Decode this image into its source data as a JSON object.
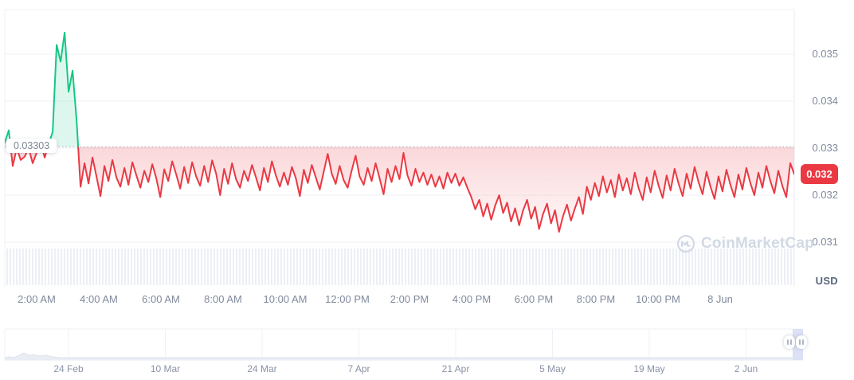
{
  "chart_data": {
    "type": "line",
    "title": "",
    "y_axis_unit": "USD",
    "current_price": "0.032",
    "reference_price": "0.03303",
    "y_ticks": [
      "0.035",
      "0.034",
      "0.033",
      "0.032",
      "0.031"
    ],
    "y_tick_values": [
      0.035,
      0.034,
      0.033,
      0.032,
      0.031
    ],
    "ylim": [
      0.0306,
      0.0358
    ],
    "grid": true,
    "x_labels": [
      "2:00 AM",
      "4:00 AM",
      "6:00 AM",
      "8:00 AM",
      "10:00 AM",
      "12:00 PM",
      "2:00 PM",
      "4:00 PM",
      "6:00 PM",
      "8:00 PM",
      "10:00 PM",
      "8 Jun"
    ],
    "navigator_labels": [
      "24 Feb",
      "10 Mar",
      "24 Mar",
      "7 Apr",
      "21 Apr",
      "5 May",
      "19 May",
      "2 Jun"
    ],
    "series": [
      {
        "name": "price-usd",
        "values": [
          0.03312,
          0.03338,
          0.03262,
          0.033,
          0.03275,
          0.03282,
          0.033,
          0.03268,
          0.0329,
          0.03312,
          0.0328,
          0.03308,
          0.03335,
          0.0352,
          0.03484,
          0.03546,
          0.0342,
          0.03465,
          0.0336,
          0.03218,
          0.03268,
          0.03225,
          0.0328,
          0.0324,
          0.03198,
          0.03262,
          0.0323,
          0.03275,
          0.03238,
          0.03218,
          0.03258,
          0.03222,
          0.0327,
          0.03242,
          0.03216,
          0.03252,
          0.03228,
          0.03266,
          0.03236,
          0.03196,
          0.03255,
          0.0323,
          0.03272,
          0.03244,
          0.03214,
          0.0326,
          0.03226,
          0.0327,
          0.0324,
          0.0322,
          0.03262,
          0.03228,
          0.03274,
          0.03246,
          0.032,
          0.03256,
          0.03224,
          0.03268,
          0.03234,
          0.03216,
          0.03252,
          0.0323,
          0.03264,
          0.03238,
          0.0321,
          0.03258,
          0.03228,
          0.03272,
          0.03242,
          0.03218,
          0.03248,
          0.03222,
          0.0326,
          0.03236,
          0.03198,
          0.03254,
          0.03226,
          0.03264,
          0.03238,
          0.03212,
          0.0325,
          0.03288,
          0.03246,
          0.03224,
          0.03262,
          0.03232,
          0.03216,
          0.03252,
          0.03284,
          0.0324,
          0.03222,
          0.03258,
          0.0323,
          0.03268,
          0.03236,
          0.03202,
          0.03256,
          0.03228,
          0.03262,
          0.03234,
          0.0329,
          0.03242,
          0.0322,
          0.03256,
          0.03228,
          0.03248,
          0.03222,
          0.03244,
          0.03218,
          0.0324,
          0.03214,
          0.03248,
          0.03226,
          0.03246,
          0.0322,
          0.03238,
          0.03216,
          0.03196,
          0.0317,
          0.0319,
          0.03155,
          0.03182,
          0.03148,
          0.03178,
          0.032,
          0.03162,
          0.03184,
          0.03144,
          0.03172,
          0.03136,
          0.03168,
          0.0319,
          0.0315,
          0.03175,
          0.03128,
          0.0316,
          0.03182,
          0.0314,
          0.03168,
          0.03122,
          0.03155,
          0.0318,
          0.03146,
          0.03172,
          0.03196,
          0.0316,
          0.03218,
          0.0319,
          0.03226,
          0.03198,
          0.0324,
          0.03206,
          0.03232,
          0.03196,
          0.03244,
          0.0321,
          0.03236,
          0.03202,
          0.03248,
          0.03214,
          0.0319,
          0.03238,
          0.03206,
          0.03252,
          0.0322,
          0.03194,
          0.03242,
          0.0321,
          0.03256,
          0.03224,
          0.03198,
          0.03246,
          0.03214,
          0.0326,
          0.03228,
          0.03202,
          0.0325,
          0.03218,
          0.03192,
          0.0324,
          0.03208,
          0.03254,
          0.03222,
          0.03196,
          0.03244,
          0.03212,
          0.03258,
          0.03226,
          0.032,
          0.03248,
          0.03216,
          0.03262,
          0.0323,
          0.03204,
          0.03252,
          0.0322,
          0.03196,
          0.03268,
          0.03245
        ]
      }
    ],
    "navigator_profile": [
      [
        6,
        3
      ],
      [
        12,
        4
      ],
      [
        18,
        3
      ],
      [
        24,
        6
      ],
      [
        30,
        9
      ],
      [
        36,
        6
      ],
      [
        42,
        7
      ],
      [
        50,
        5
      ],
      [
        58,
        6
      ],
      [
        66,
        4
      ],
      [
        76,
        3
      ],
      [
        90,
        3
      ],
      [
        140,
        3
      ],
      [
        300,
        3
      ],
      [
        500,
        3
      ],
      [
        700,
        3
      ],
      [
        900,
        3
      ],
      [
        1008,
        3
      ]
    ],
    "colors": {
      "up": "#16c784",
      "down": "#ea3943",
      "up_fill": "rgba(22,199,132,0.14)",
      "grid": "#eff2f5",
      "border": "#e8ebf1",
      "axis_text": "#808a9d",
      "ref_line": "#b4bbc9",
      "badge_bg": "#ea3943",
      "badge_text": "#ffffff",
      "volume_bar": "#edeff6",
      "navigator_band": "#dde1f6",
      "navigator_fill": "#eaedf4",
      "navigator_stroke": "#dce1ea",
      "watermark": "#d2d9e5"
    }
  },
  "watermark": {
    "label": "CoinMarketCap"
  }
}
